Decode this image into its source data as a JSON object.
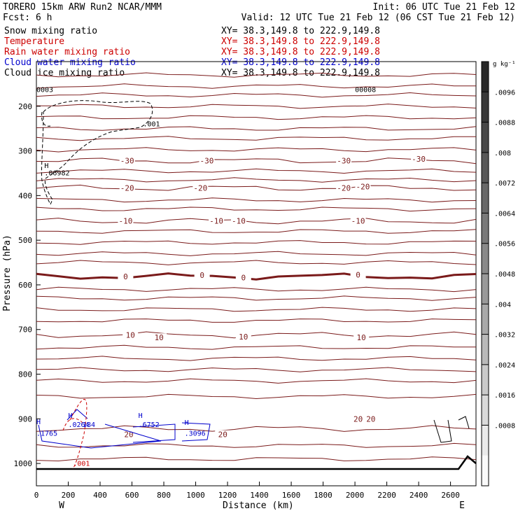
{
  "header": {
    "model": "TORERO  15km ARW   Run2   NCAR/MMM",
    "init": "Init: 06 UTC Tue 21 Feb 12",
    "fcst": "Fcst:    6 h",
    "valid": "Valid: 12 UTC Tue 21 Feb 12 (06 CST Tue 21 Feb 12)"
  },
  "legend": [
    {
      "label": "Snow mixing ratio",
      "range": "XY=  38.3,149.8 to 222.9,149.8",
      "color": "#000000"
    },
    {
      "label": "Temperature",
      "range": "XY=  38.3,149.8 to 222.9,149.8",
      "color": "#cc0000"
    },
    {
      "label": "Rain water mixing ratio",
      "range": "XY=  38.3,149.8 to 222.9,149.8",
      "color": "#cc0000"
    },
    {
      "label": "Cloud water mixing ratio",
      "range": "XY=  38.3,149.8 to 222.9,149.8",
      "color": "#0000cc"
    },
    {
      "label": "Cloud ice mixing ratio",
      "range": "XY=  38.3,149.8 to 222.9,149.8",
      "color": "#000000"
    }
  ],
  "chart_data": {
    "type": "cross-section contour",
    "xlabel": "Distance (km)",
    "ylabel": "Pressure (hPa)",
    "xlim": [
      0,
      2760
    ],
    "ylim": [
      1050,
      100
    ],
    "x_ticks": [
      0,
      200,
      400,
      600,
      800,
      1000,
      1200,
      1400,
      1600,
      1800,
      2000,
      2200,
      2400,
      2600
    ],
    "y_ticks": [
      200,
      300,
      400,
      500,
      600,
      700,
      800,
      900,
      1000
    ],
    "x_end_labels": {
      "left": "W",
      "right": "E"
    },
    "colorbar": {
      "unit": "g kg⁻¹",
      "ticks": [
        ".0096",
        ".0088",
        ".008",
        ".0072",
        ".0064",
        ".0056",
        ".0048",
        ".004",
        ".0032",
        ".0024",
        ".0016",
        ".0008"
      ]
    },
    "temperature_contours": [
      {
        "label": "-30",
        "pressure": 322,
        "label_positions": [
          [
            570,
            322
          ],
          [
            1070,
            322
          ],
          [
            1930,
            322
          ],
          [
            2400,
            318
          ]
        ]
      },
      {
        "label": "-20",
        "pressure": 383,
        "label_positions": [
          [
            570,
            383
          ],
          [
            1030,
            383
          ],
          [
            1930,
            383
          ],
          [
            2050,
            380
          ]
        ]
      },
      {
        "label": "-10",
        "pressure": 457,
        "label_positions": [
          [
            560,
            457
          ],
          [
            1130,
            457
          ],
          [
            1270,
            457
          ],
          [
            2020,
            457
          ]
        ]
      },
      {
        "label": "0",
        "pressure": 581,
        "label_positions": [
          [
            560,
            581
          ],
          [
            1040,
            578
          ],
          [
            1300,
            584
          ],
          [
            2020,
            577
          ]
        ]
      },
      {
        "label": "10",
        "pressure": 712,
        "label_positions": [
          [
            590,
            712
          ],
          [
            770,
            718
          ],
          [
            1300,
            716
          ],
          [
            2040,
            718
          ]
        ]
      },
      {
        "label": "20",
        "pressure": 922,
        "label_positions": [
          [
            580,
            935
          ],
          [
            1170,
            935
          ],
          [
            2020,
            900
          ],
          [
            2100,
            900
          ]
        ]
      }
    ],
    "cloud_ice_annotations": [
      {
        "text": ".001",
        "x": 670,
        "y": 245
      },
      {
        "text": "H",
        "x": 50,
        "y": 338
      },
      {
        "text": ".06982",
        "x": 50,
        "y": 355
      },
      {
        "text": "0003",
        "x": 0,
        "y": 168
      },
      {
        "text": "00008",
        "x": 2000,
        "y": 168
      }
    ],
    "cloud_water_annotations": [
      {
        "text": "H",
        "x": 0,
        "y": 912
      },
      {
        "text": ".1765",
        "x": 0,
        "y": 938
      },
      {
        "text": "H",
        "x": 200,
        "y": 898
      },
      {
        "text": ".0264",
        "x": 200,
        "y": 918
      },
      {
        "text": "184",
        "x": 290,
        "y": 918
      },
      {
        "text": "H",
        "x": 640,
        "y": 898
      },
      {
        "text": ".6752",
        "x": 640,
        "y": 918
      },
      {
        "text": "H",
        "x": 930,
        "y": 914
      },
      {
        "text": ".3096",
        "x": 930,
        "y": 938
      }
    ],
    "rain_annotations": [
      {
        "text": ".001",
        "x": 230,
        "y": 1005
      }
    ]
  }
}
